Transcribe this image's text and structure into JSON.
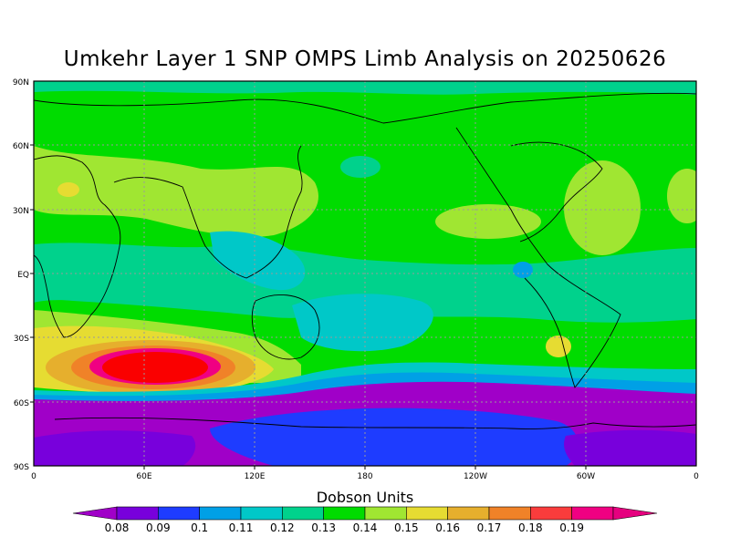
{
  "title": "Umkehr Layer 1 SNP OMPS Limb Analysis on 20250626",
  "lat_labels": [
    "90N",
    "60N",
    "30N",
    "EQ",
    "30S",
    "60S",
    "90S"
  ],
  "lon_labels": [
    "0",
    "60E",
    "120E",
    "180",
    "120W",
    "60W",
    "0"
  ],
  "colorbar": {
    "title": "Dobson Units",
    "ticks": [
      "0.08",
      "0.09",
      "0.1",
      "0.11",
      "0.12",
      "0.13",
      "0.14",
      "0.15",
      "0.16",
      "0.17",
      "0.18",
      "0.19"
    ],
    "colors": [
      "#a000c8",
      "#7800dc",
      "#1e3cff",
      "#00a0e6",
      "#00c8c8",
      "#00d28c",
      "#00dc00",
      "#a0e632",
      "#e6dc32",
      "#e6af2d",
      "#f08228",
      "#fa3c3c",
      "#f00082",
      "#e6007f"
    ]
  },
  "chart_data": {
    "type": "heatmap",
    "title": "Umkehr Layer 1 SNP OMPS Limb Analysis on 20250626",
    "units": "Dobson Units",
    "xlabel": "",
    "ylabel": "",
    "grid": true,
    "x_range": [
      "0",
      "0"
    ],
    "y_range": [
      "90S",
      "90N"
    ],
    "levels": [
      0.08,
      0.09,
      0.1,
      0.11,
      0.12,
      0.13,
      0.14,
      0.15,
      0.16,
      0.17,
      0.18,
      0.19
    ],
    "features": [
      {
        "region": "south polar band 60S-90S",
        "value_range": [
          0.08,
          0.09
        ]
      },
      {
        "region": "southern Indian Ocean maximum near 40S 70E",
        "value_range": [
          0.18,
          0.19
        ]
      },
      {
        "region": "tropics",
        "value_range": [
          0.12,
          0.14
        ]
      },
      {
        "region": "northern mid-latitudes",
        "value_range": [
          0.14,
          0.16
        ]
      }
    ]
  }
}
